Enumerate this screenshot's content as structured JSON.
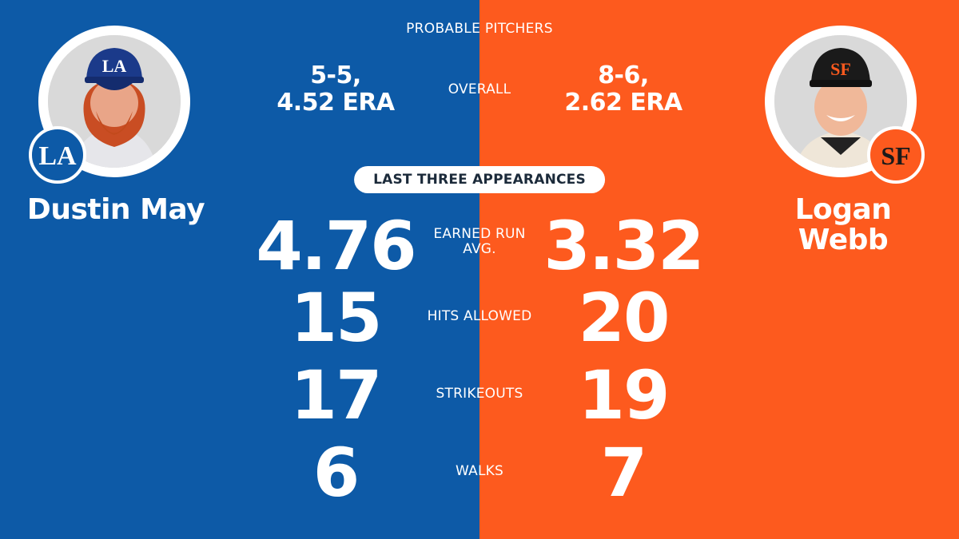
{
  "header": {
    "title": "PROBABLE PITCHERS"
  },
  "colors": {
    "dodgers_blue": "#0d5aa7",
    "giants_orange": "#fd5a1e",
    "pill_text": "#1b2a3a"
  },
  "left_pitcher": {
    "name_line1": "Dustin May",
    "team_logo": "la-logo-icon",
    "record_line1": "5-5,",
    "record_line2": "4.52 ERA"
  },
  "right_pitcher": {
    "name_line1": "Logan",
    "name_line2": "Webb",
    "team_logo": "sf-logo-icon",
    "record_line1": "8-6,",
    "record_line2": "2.62 ERA"
  },
  "overall_label": "OVERALL",
  "last_three_label": "LAST THREE APPEARANCES",
  "stats": [
    {
      "label_line1": "EARNED RUN",
      "label_line2": "AVG.",
      "left": "4.76",
      "right": "3.32"
    },
    {
      "label_line1": "HITS ALLOWED",
      "label_line2": "",
      "left": "15",
      "right": "20"
    },
    {
      "label_line1": "STRIKEOUTS",
      "label_line2": "",
      "left": "17",
      "right": "19"
    },
    {
      "label_line1": "WALKS",
      "label_line2": "",
      "left": "6",
      "right": "7"
    }
  ]
}
